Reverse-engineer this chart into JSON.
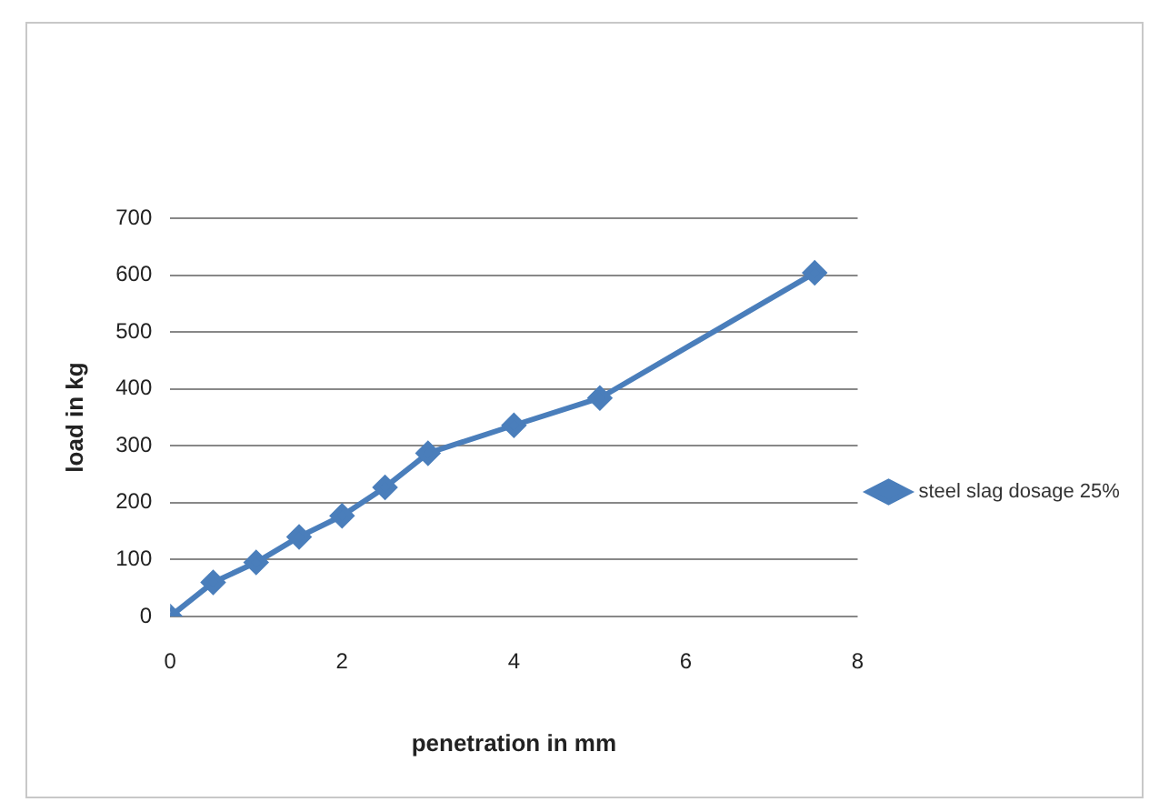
{
  "chart_data": {
    "type": "line",
    "xlabel": "penetration in mm",
    "ylabel": "load in kg",
    "series": [
      {
        "name": "steel slag dosage 25%",
        "color": "#4a7ebb",
        "x": [
          0,
          0.5,
          1,
          1.5,
          2,
          2.5,
          3,
          4,
          5,
          7.5
        ],
        "values": [
          0,
          60,
          95,
          140,
          177,
          227,
          287,
          336,
          384,
          604
        ]
      }
    ],
    "xlim": [
      0,
      8
    ],
    "xticks": [
      0,
      2,
      4,
      6,
      8
    ],
    "ylim": [
      0,
      700
    ],
    "yticks": [
      0,
      100,
      200,
      300,
      400,
      500,
      600,
      700
    ],
    "grid": "y",
    "legend": "right",
    "marker": "diamond",
    "line_style": "solid"
  }
}
